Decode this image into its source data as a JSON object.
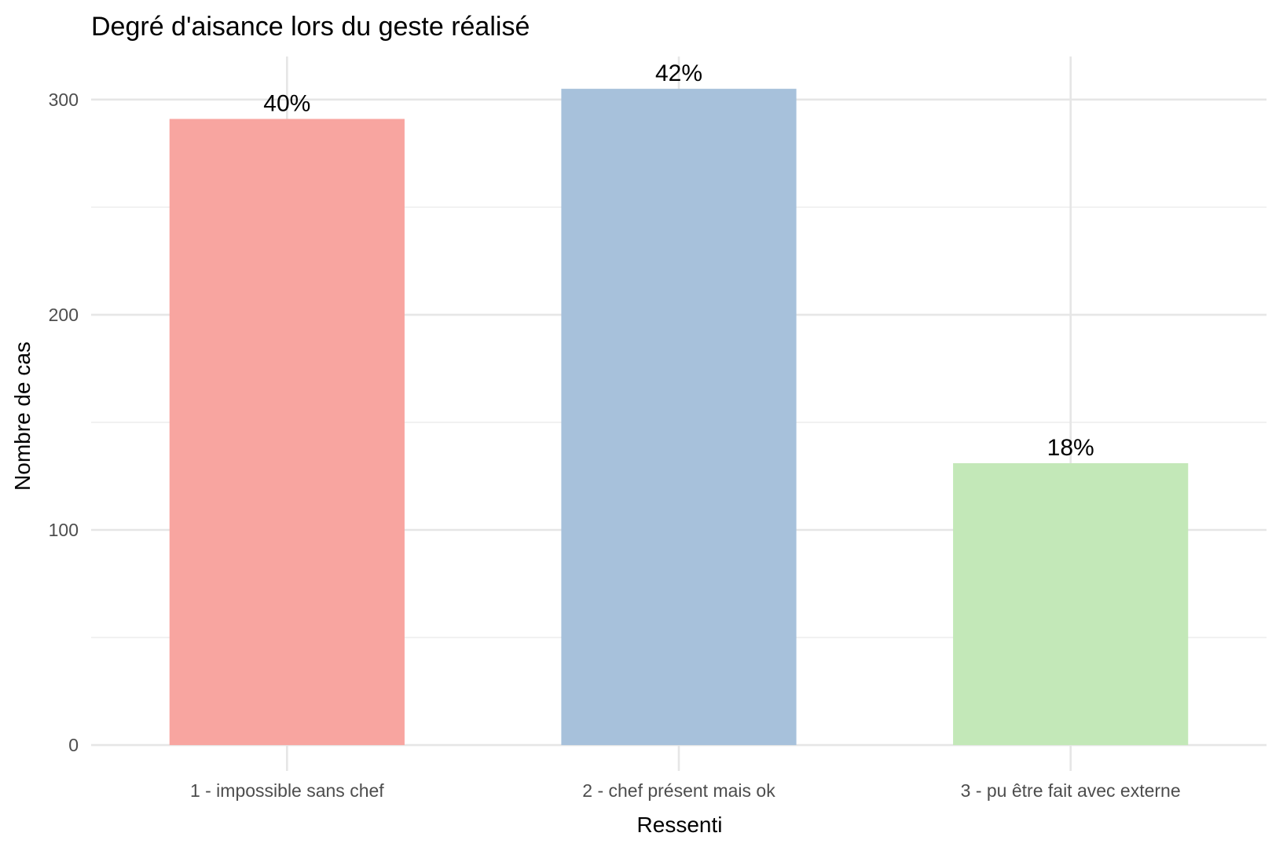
{
  "chart_data": {
    "type": "bar",
    "title": "Degré d'aisance lors du geste réalisé",
    "xlabel": "Ressenti",
    "ylabel": "Nombre de cas",
    "categories": [
      "1 - impossible sans chef",
      "2 - chef présent mais ok",
      "3 - pu être fait avec externe"
    ],
    "values": [
      291,
      305,
      131
    ],
    "data_labels": [
      "40%",
      "42%",
      "18%"
    ],
    "colors": [
      "#f8a5a0",
      "#a7c1db",
      "#c3e8b8"
    ],
    "ylim": [
      -12,
      320
    ],
    "yticks": [
      0,
      100,
      200,
      300
    ],
    "yminor": [
      50,
      150,
      250
    ],
    "grid": true,
    "legend": "none"
  }
}
